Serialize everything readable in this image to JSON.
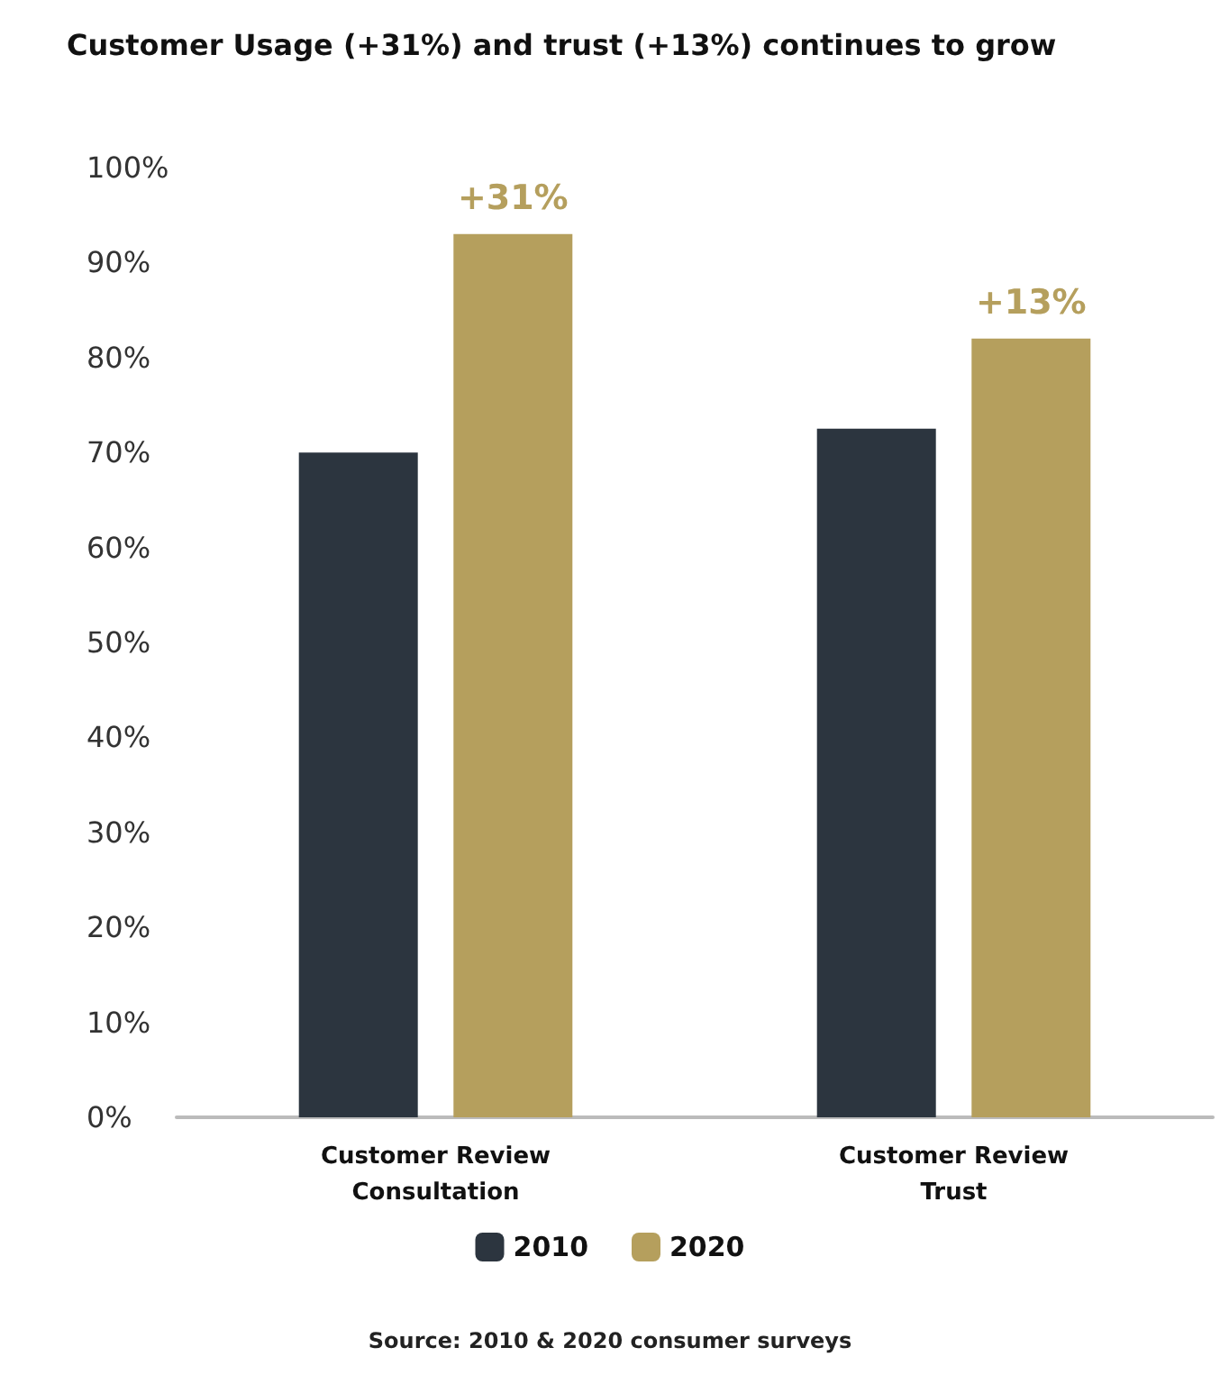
{
  "chart_data": {
    "type": "bar",
    "title": "Customer Usage (+31%) and trust (+13%) continues to grow",
    "categories": [
      "Customer Review\nConsultation",
      "Customer Review\nTrust"
    ],
    "series": [
      {
        "name": "2010",
        "color": "#2c353f",
        "values": [
          70,
          72.5
        ]
      },
      {
        "name": "2020",
        "color": "#b59f5d",
        "values": [
          93,
          82
        ]
      }
    ],
    "ylim": [
      0,
      100
    ],
    "yticks": [
      {
        "value": 0,
        "label": "0%"
      },
      {
        "value": 10,
        "label": "10%"
      },
      {
        "value": 20,
        "label": "20%"
      },
      {
        "value": 30,
        "label": "30%"
      },
      {
        "value": 40,
        "label": "40%"
      },
      {
        "value": 50,
        "label": "50%"
      },
      {
        "value": 60,
        "label": "60%"
      },
      {
        "value": 70,
        "label": "70%"
      },
      {
        "value": 80,
        "label": "80%"
      },
      {
        "value": 90,
        "label": "90%"
      },
      {
        "value": 100,
        "label": "100%"
      }
    ],
    "annotations": [
      "+31%",
      "+13%",
      "Source: 2010 & 2020 consumer surveys"
    ],
    "grid": false,
    "legend": "bottom"
  }
}
